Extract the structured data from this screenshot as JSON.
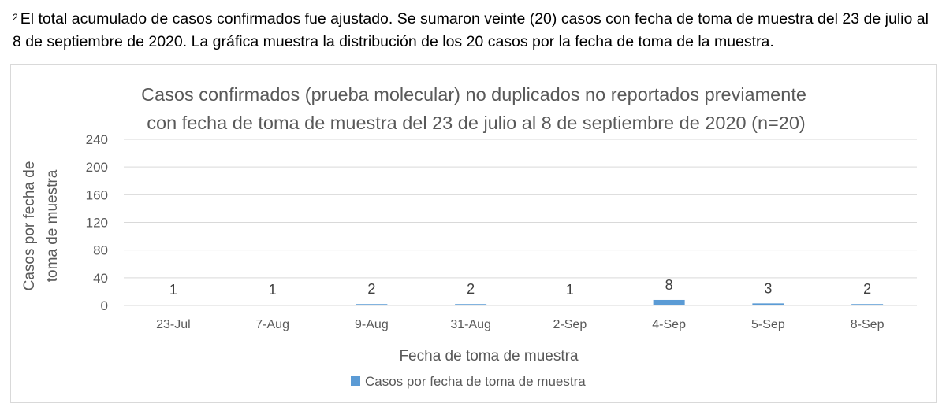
{
  "footnote": {
    "marker": "2",
    "text": "El total acumulado de casos confirmados fue ajustado. Se sumaron veinte (20) casos con fecha de toma de muestra del 23 de julio al 8 de septiembre de 2020. La gráfica muestra la distribución de los 20 casos por la fecha de toma de la muestra."
  },
  "chart_data": {
    "type": "bar",
    "title_line1": "Casos confirmados (prueba molecular) no duplicados no reportados previamente",
    "title_line2": "con fecha de toma de muestra del 23 de julio al 8 de septiembre de 2020 (n=20)",
    "ylabel_line1": "Casos por fecha de",
    "ylabel_line2": "toma de muestra",
    "xlabel": "Fecha de toma de muestra",
    "categories": [
      "23-Jul",
      "7-Aug",
      "9-Aug",
      "31-Aug",
      "2-Sep",
      "4-Sep",
      "5-Sep",
      "8-Sep"
    ],
    "series": [
      {
        "name": "Casos por fecha de toma de muestra",
        "values": [
          1,
          1,
          2,
          2,
          1,
          8,
          3,
          2
        ],
        "color": "#5b9bd5"
      }
    ],
    "ylim": [
      0,
      240
    ],
    "yticks": [
      "0",
      "40",
      "80",
      "120",
      "160",
      "200",
      "240"
    ],
    "grid": true,
    "legend_position": "bottom"
  }
}
